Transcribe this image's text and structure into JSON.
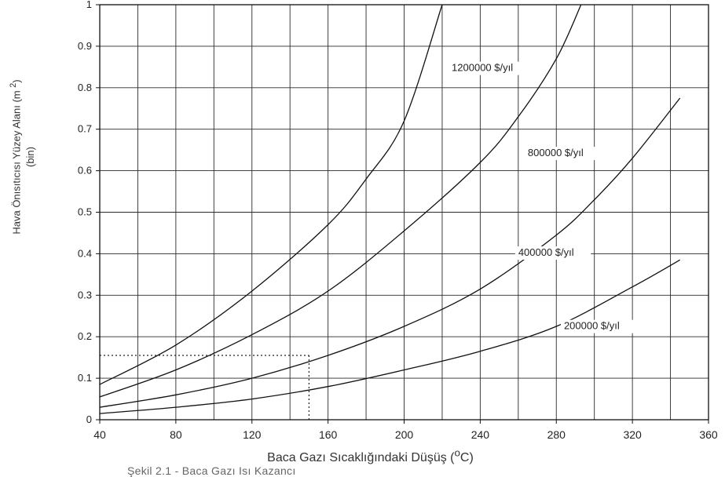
{
  "chart_data": {
    "type": "line",
    "xlabel": "Baca Gazı Sıcaklığındaki Düşüş (°C)",
    "xlabel_parts": [
      "Baca Gazı Sıcaklığındaki Düşüş (",
      "o",
      "C)"
    ],
    "ylabel_line1_parts": [
      "Hava Önısıtıcısı Yüzey Alanı (m ",
      "2",
      ")"
    ],
    "ylabel_line2": "(bin)",
    "caption": "Şekil 2.1 - Baca Gazı Isı Kazancı",
    "xlim": [
      40,
      360
    ],
    "ylim": [
      0,
      1
    ],
    "xticks": [
      "40",
      "80",
      "120",
      "160",
      "200",
      "240",
      "280",
      "320",
      "360"
    ],
    "yticks": [
      "0",
      "0.1",
      "0.2",
      "0.3",
      "0.4",
      "0.5",
      "0.6",
      "0.7",
      "0.8",
      "0.9",
      "1"
    ],
    "x_grid_step": 20,
    "y_grid_step": 0.1,
    "grid": true,
    "series": [
      {
        "name": "1200000 $/yıl",
        "label_x": 225,
        "label_y": 0.84,
        "x": [
          40,
          80,
          120,
          160,
          180,
          200,
          220
        ],
        "y": [
          0.085,
          0.18,
          0.31,
          0.47,
          0.58,
          0.72,
          1.0
        ]
      },
      {
        "name": "800000 $/yıl",
        "label_x": 265,
        "label_y": 0.635,
        "x": [
          40,
          80,
          120,
          160,
          200,
          240,
          260,
          280,
          293
        ],
        "y": [
          0.055,
          0.12,
          0.205,
          0.31,
          0.455,
          0.62,
          0.73,
          0.87,
          1.0
        ]
      },
      {
        "name": "400000 $/yıl",
        "label_x": 260,
        "label_y": 0.395,
        "x": [
          40,
          80,
          120,
          160,
          200,
          240,
          280,
          300,
          320,
          345
        ],
        "y": [
          0.03,
          0.06,
          0.1,
          0.155,
          0.225,
          0.315,
          0.445,
          0.53,
          0.63,
          0.775
        ]
      },
      {
        "name": "200000 $/yıl",
        "label_x": 284,
        "label_y": 0.218,
        "x": [
          40,
          80,
          120,
          160,
          200,
          240,
          280,
          320,
          345
        ],
        "y": [
          0.015,
          0.03,
          0.05,
          0.08,
          0.12,
          0.165,
          0.225,
          0.32,
          0.385
        ]
      }
    ],
    "guide_lines": [
      {
        "style": "dotted",
        "from": [
          40,
          0.155
        ],
        "to": [
          150,
          0.155
        ]
      },
      {
        "style": "dotted",
        "from": [
          150,
          0
        ],
        "to": [
          150,
          0.155
        ]
      }
    ]
  }
}
